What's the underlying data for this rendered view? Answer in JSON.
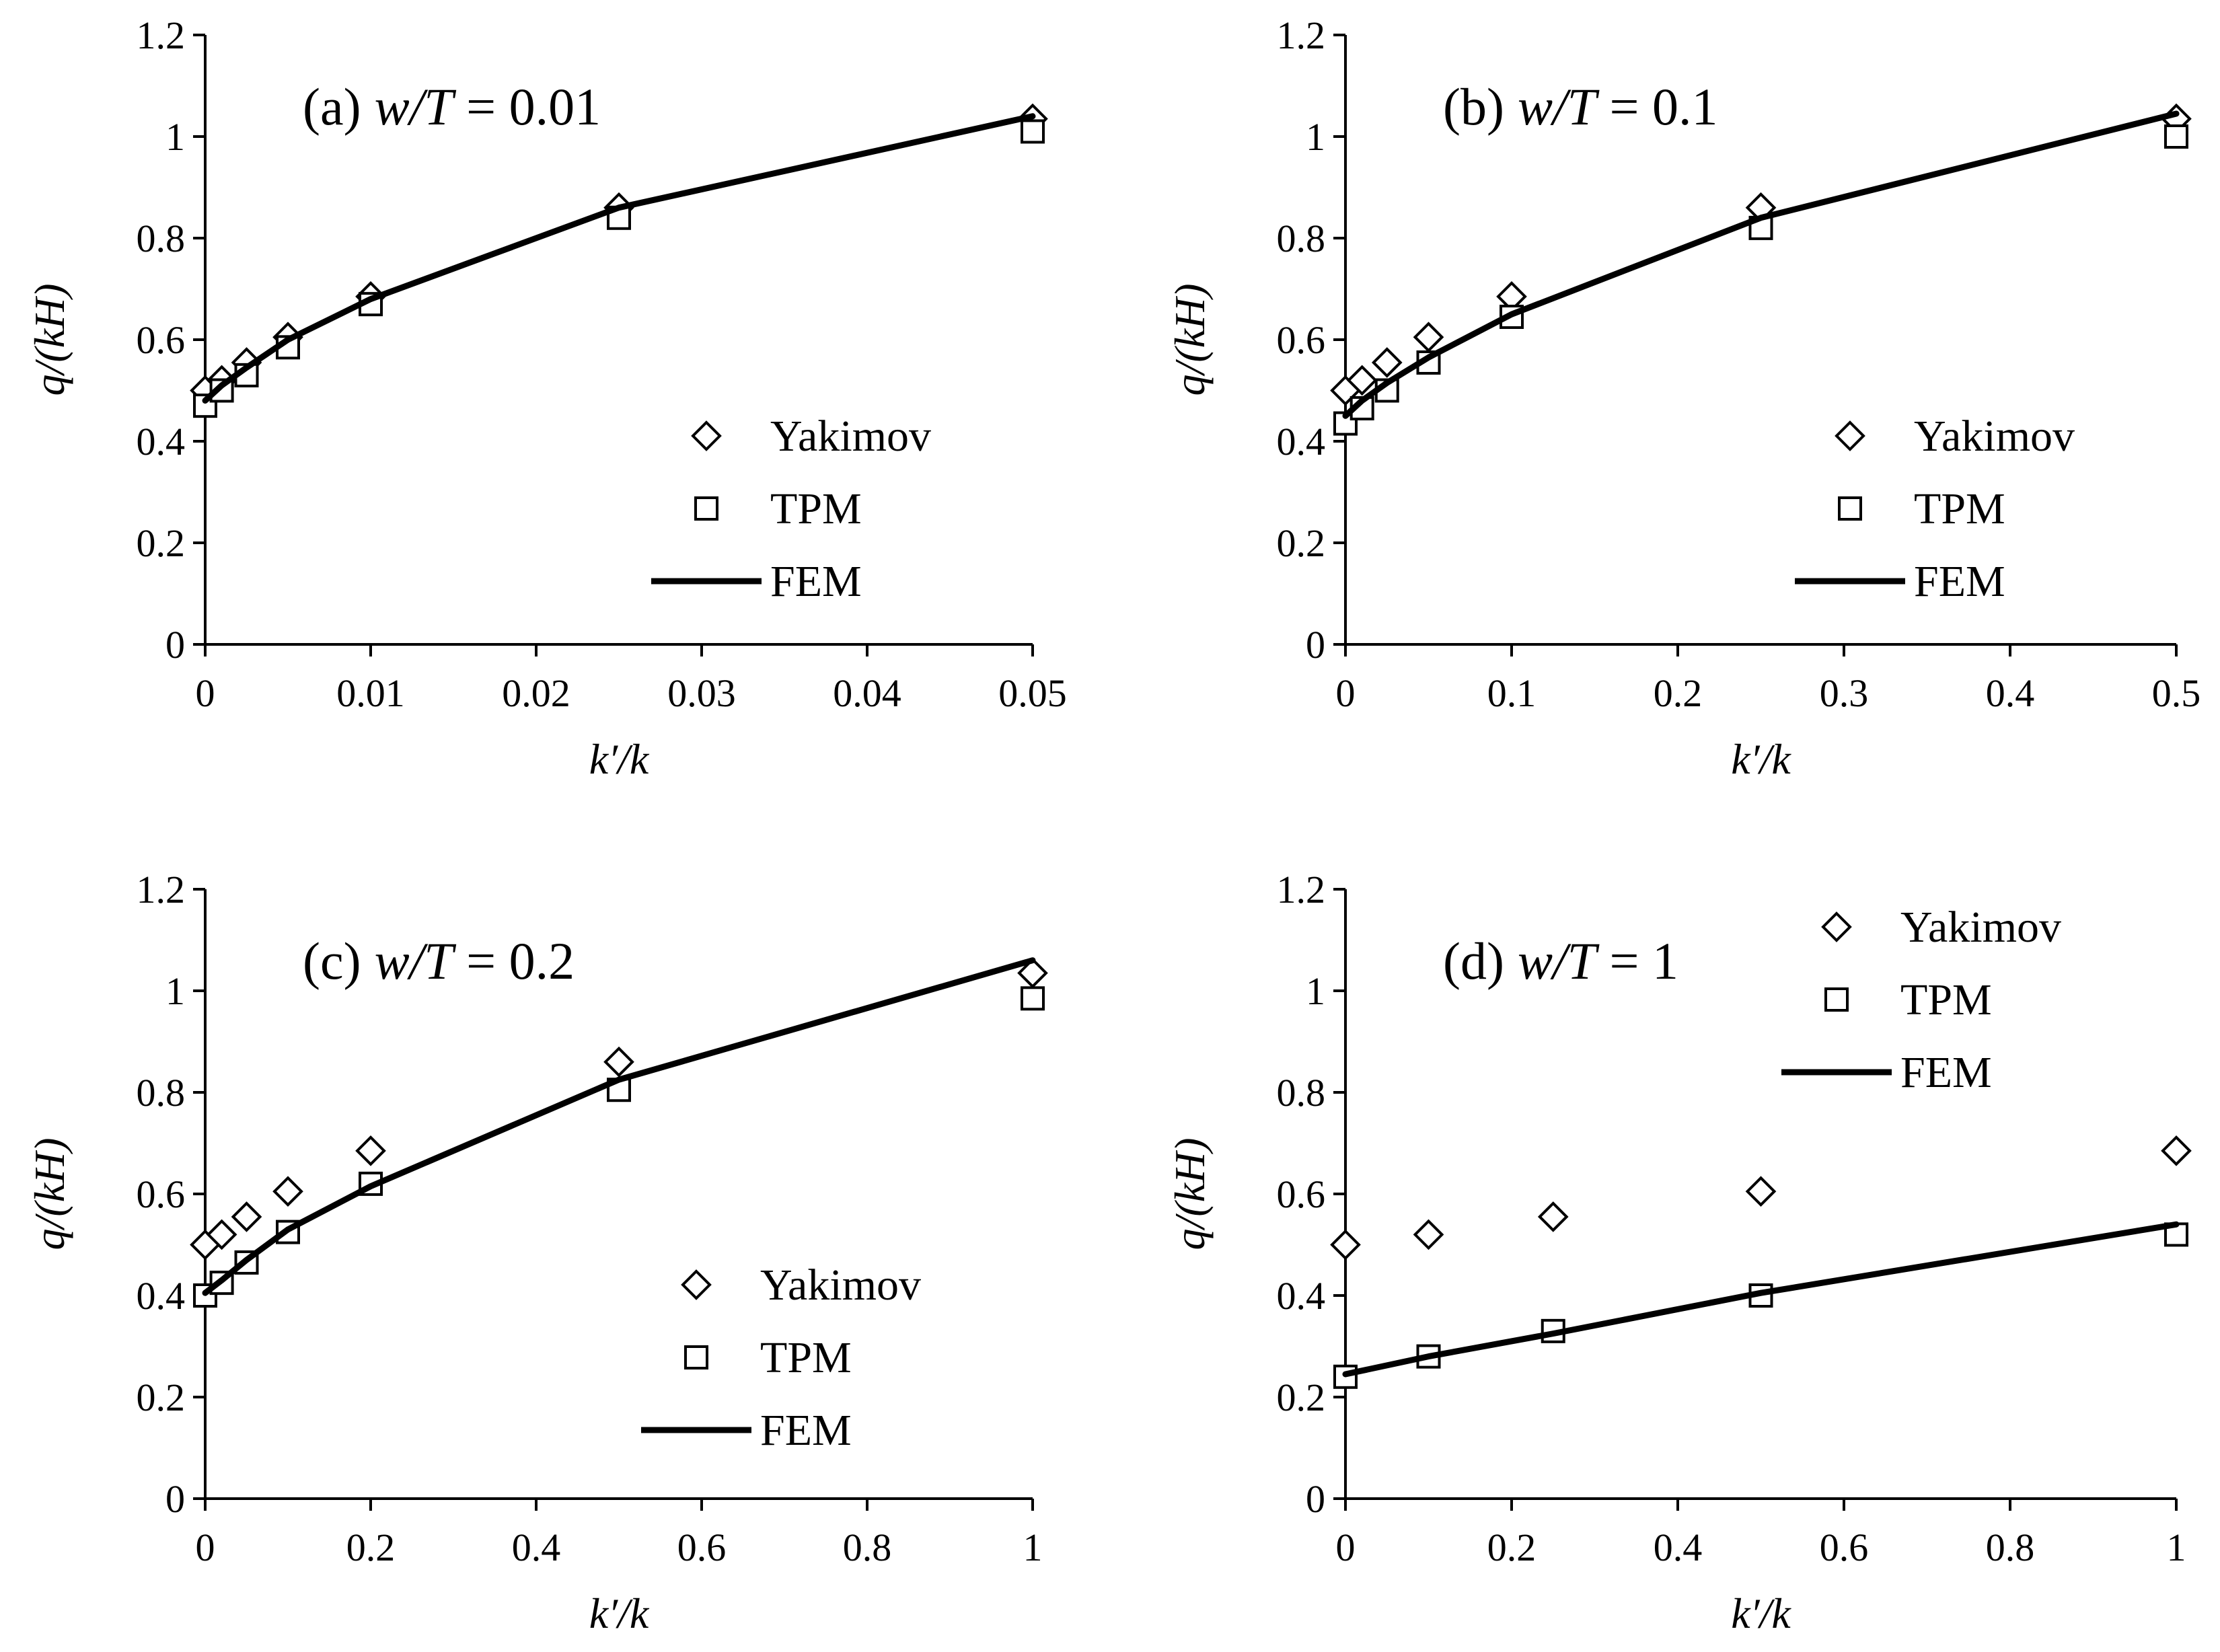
{
  "chart_data": [
    {
      "type": "scatter",
      "panel": "a",
      "title_prefix": "(a)",
      "title_var": "w/T",
      "title_value": "0.01",
      "xlabel": "k′/k",
      "ylabel": "q/(kH)",
      "xlim": [
        0,
        0.05
      ],
      "ylim": [
        0,
        1.2
      ],
      "xticks": [
        0,
        0.01,
        0.02,
        0.03,
        0.04,
        0.05
      ],
      "xtick_labels": [
        "0",
        "0.01",
        "0.02",
        "0.03",
        "0.04",
        "0.05"
      ],
      "yticks": [
        0,
        0.2,
        0.4,
        0.6,
        0.8,
        1.0,
        1.2
      ],
      "ytick_labels": [
        "0",
        "0.2",
        "0.4",
        "0.6",
        "0.8",
        "1",
        "1.2"
      ],
      "legend_position": "bottom-right",
      "series": [
        {
          "name": "Yakimov",
          "marker": "diamond",
          "x": [
            0,
            0.001,
            0.0025,
            0.005,
            0.01,
            0.025,
            0.05
          ],
          "y": [
            0.5,
            0.52,
            0.555,
            0.605,
            0.685,
            0.86,
            1.035
          ]
        },
        {
          "name": "TPM",
          "marker": "square",
          "x": [
            0,
            0.001,
            0.0025,
            0.005,
            0.01,
            0.025,
            0.05
          ],
          "y": [
            0.47,
            0.5,
            0.53,
            0.585,
            0.67,
            0.84,
            1.01
          ]
        },
        {
          "name": "FEM",
          "marker": "line",
          "x": [
            0,
            0.001,
            0.0025,
            0.005,
            0.01,
            0.025,
            0.05
          ],
          "y": [
            0.48,
            0.51,
            0.545,
            0.6,
            0.68,
            0.86,
            1.04
          ]
        }
      ]
    },
    {
      "type": "scatter",
      "panel": "b",
      "title_prefix": "(b)",
      "title_var": "w/T",
      "title_value": "0.1",
      "xlabel": "k′/k",
      "ylabel": "q/(kH)",
      "xlim": [
        0,
        0.5
      ],
      "ylim": [
        0,
        1.2
      ],
      "xticks": [
        0,
        0.1,
        0.2,
        0.3,
        0.4,
        0.5
      ],
      "xtick_labels": [
        "0",
        "0.1",
        "0.2",
        "0.3",
        "0.4",
        "0.5"
      ],
      "yticks": [
        0,
        0.2,
        0.4,
        0.6,
        0.8,
        1.0,
        1.2
      ],
      "ytick_labels": [
        "0",
        "0.2",
        "0.4",
        "0.6",
        "0.8",
        "1",
        "1.2"
      ],
      "legend_position": "bottom-right",
      "series": [
        {
          "name": "Yakimov",
          "marker": "diamond",
          "x": [
            0,
            0.01,
            0.025,
            0.05,
            0.1,
            0.25,
            0.5
          ],
          "y": [
            0.5,
            0.52,
            0.555,
            0.605,
            0.685,
            0.86,
            1.035
          ]
        },
        {
          "name": "TPM",
          "marker": "square",
          "x": [
            0,
            0.01,
            0.025,
            0.05,
            0.1,
            0.25,
            0.5
          ],
          "y": [
            0.435,
            0.465,
            0.5,
            0.555,
            0.645,
            0.82,
            1.0
          ]
        },
        {
          "name": "FEM",
          "marker": "line",
          "x": [
            0,
            0.01,
            0.025,
            0.05,
            0.1,
            0.25,
            0.5
          ],
          "y": [
            0.45,
            0.48,
            0.515,
            0.565,
            0.65,
            0.84,
            1.045
          ]
        }
      ]
    },
    {
      "type": "scatter",
      "panel": "c",
      "title_prefix": "(c)",
      "title_var": "w/T",
      "title_value": "0.2",
      "xlabel": "k′/k",
      "ylabel": "q/(kH)",
      "xlim": [
        0,
        1
      ],
      "ylim": [
        0,
        1.2
      ],
      "xticks": [
        0,
        0.2,
        0.4,
        0.6,
        0.8,
        1.0
      ],
      "xtick_labels": [
        "0",
        "0.2",
        "0.4",
        "0.6",
        "0.8",
        "1"
      ],
      "yticks": [
        0,
        0.2,
        0.4,
        0.6,
        0.8,
        1.0,
        1.2
      ],
      "ytick_labels": [
        "0",
        "0.2",
        "0.4",
        "0.6",
        "0.8",
        "1",
        "1.2"
      ],
      "legend_position": "bottom-right",
      "series": [
        {
          "name": "Yakimov",
          "marker": "diamond",
          "x": [
            0,
            0.02,
            0.05,
            0.1,
            0.2,
            0.5,
            1.0
          ],
          "y": [
            0.5,
            0.52,
            0.555,
            0.605,
            0.685,
            0.86,
            1.035
          ]
        },
        {
          "name": "TPM",
          "marker": "square",
          "x": [
            0,
            0.02,
            0.05,
            0.1,
            0.2,
            0.5,
            1.0
          ],
          "y": [
            0.4,
            0.425,
            0.465,
            0.525,
            0.62,
            0.805,
            0.985
          ]
        },
        {
          "name": "FEM",
          "marker": "line",
          "x": [
            0,
            0.02,
            0.05,
            0.1,
            0.2,
            0.5,
            1.0
          ],
          "y": [
            0.405,
            0.43,
            0.47,
            0.53,
            0.615,
            0.825,
            1.06
          ]
        }
      ]
    },
    {
      "type": "scatter",
      "panel": "d",
      "title_prefix": "(d)",
      "title_var": "w/T",
      "title_value": "1",
      "xlabel": "k′/k",
      "ylabel": "q/(kH)",
      "xlim": [
        0,
        1
      ],
      "ylim": [
        0,
        1.2
      ],
      "xticks": [
        0,
        0.2,
        0.4,
        0.6,
        0.8,
        1.0
      ],
      "xtick_labels": [
        "0",
        "0.2",
        "0.4",
        "0.6",
        "0.8",
        "1"
      ],
      "yticks": [
        0,
        0.2,
        0.4,
        0.6,
        0.8,
        1.0,
        1.2
      ],
      "ytick_labels": [
        "0",
        "0.2",
        "0.4",
        "0.6",
        "0.8",
        "1",
        "1.2"
      ],
      "legend_position": "top-right",
      "series": [
        {
          "name": "Yakimov",
          "marker": "diamond",
          "x": [
            0,
            0.1,
            0.25,
            0.5,
            1.0
          ],
          "y": [
            0.5,
            0.52,
            0.555,
            0.605,
            0.685
          ]
        },
        {
          "name": "TPM",
          "marker": "square",
          "x": [
            0,
            0.1,
            0.25,
            0.5,
            1.0
          ],
          "y": [
            0.24,
            0.28,
            0.33,
            0.4,
            0.52
          ]
        },
        {
          "name": "FEM",
          "marker": "line",
          "x": [
            0,
            0.1,
            0.25,
            0.5,
            1.0
          ],
          "y": [
            0.245,
            0.28,
            0.325,
            0.405,
            0.54
          ]
        }
      ]
    }
  ]
}
